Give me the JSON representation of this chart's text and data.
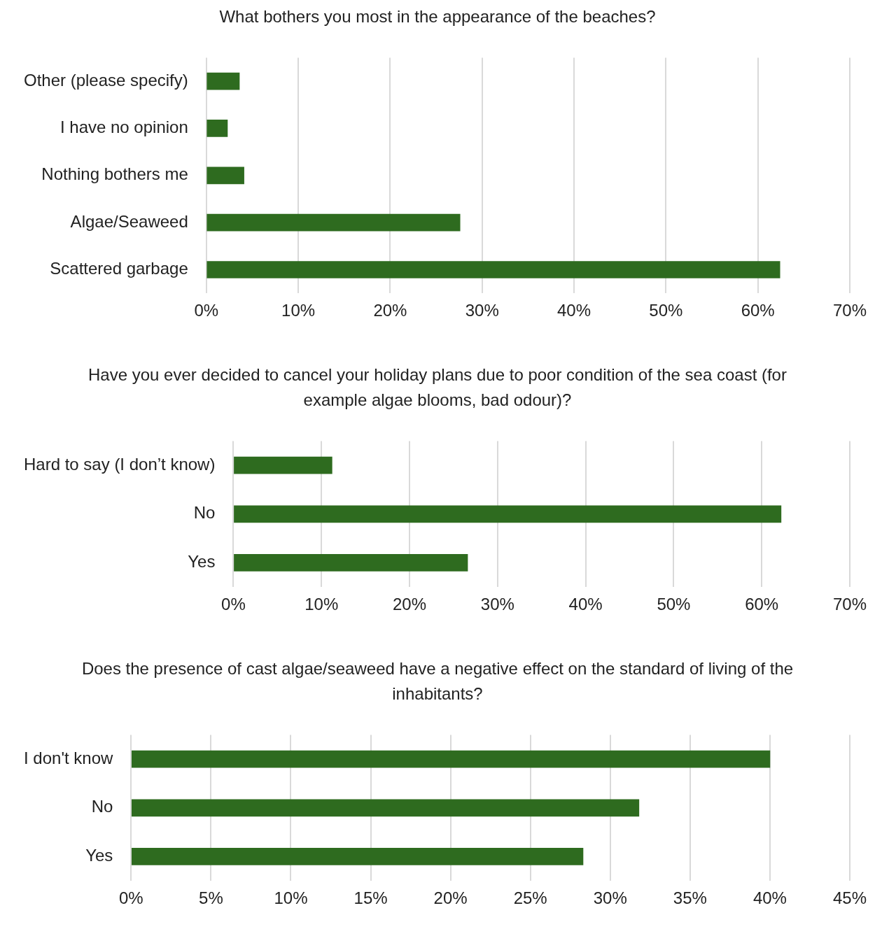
{
  "chart_data": [
    {
      "type": "bar",
      "orientation": "horizontal",
      "title": "What bothers you most in the appearance of the beaches?",
      "categories": [
        "Other (please specify)",
        "I have no opinion",
        "Nothing bothers me",
        "Algae/Seaweed",
        "Scattered garbage"
      ],
      "values": [
        3.6,
        2.3,
        4.1,
        27.6,
        62.4
      ],
      "color": "#2e6b1f",
      "xlim": [
        0,
        70
      ],
      "xticks": [
        {
          "value": 0,
          "label": "0%"
        },
        {
          "value": 10,
          "label": "10%"
        },
        {
          "value": 20,
          "label": "20%"
        },
        {
          "value": 30,
          "label": "30%"
        },
        {
          "value": 40,
          "label": "40%"
        },
        {
          "value": 50,
          "label": "50%"
        },
        {
          "value": 60,
          "label": "60%"
        },
        {
          "value": 70,
          "label": "70%"
        }
      ],
      "grid": "x",
      "legend": false
    },
    {
      "type": "bar",
      "orientation": "horizontal",
      "title": "Have you ever decided to cancel your holiday plans due to poor condition of the sea coast (for example algae blooms, bad odour)?",
      "categories": [
        "Hard to say (I don’t know)",
        "No",
        "Yes"
      ],
      "values": [
        11.2,
        62.2,
        26.6
      ],
      "color": "#2e6b1f",
      "xlim": [
        0,
        70
      ],
      "xticks": [
        {
          "value": 0,
          "label": "0%"
        },
        {
          "value": 10,
          "label": "10%"
        },
        {
          "value": 20,
          "label": "20%"
        },
        {
          "value": 30,
          "label": "30%"
        },
        {
          "value": 40,
          "label": "40%"
        },
        {
          "value": 50,
          "label": "50%"
        },
        {
          "value": 60,
          "label": "60%"
        },
        {
          "value": 70,
          "label": "70%"
        }
      ],
      "grid": "x",
      "legend": false
    },
    {
      "type": "bar",
      "orientation": "horizontal",
      "title": "Does the presence of cast algae/seaweed have a negative effect on the standard of living of the inhabitants?",
      "categories": [
        "I don't know",
        "No",
        "Yes"
      ],
      "values": [
        40.0,
        31.8,
        28.3
      ],
      "color": "#2e6b1f",
      "xlim": [
        0,
        45
      ],
      "xticks": [
        {
          "value": 0,
          "label": "0%"
        },
        {
          "value": 5,
          "label": "5%"
        },
        {
          "value": 10,
          "label": "10%"
        },
        {
          "value": 15,
          "label": "15%"
        },
        {
          "value": 20,
          "label": "20%"
        },
        {
          "value": 25,
          "label": "25%"
        },
        {
          "value": 30,
          "label": "30%"
        },
        {
          "value": 35,
          "label": "35%"
        },
        {
          "value": 40,
          "label": "40%"
        },
        {
          "value": 45,
          "label": "45%"
        }
      ],
      "grid": "x",
      "legend": false
    }
  ]
}
